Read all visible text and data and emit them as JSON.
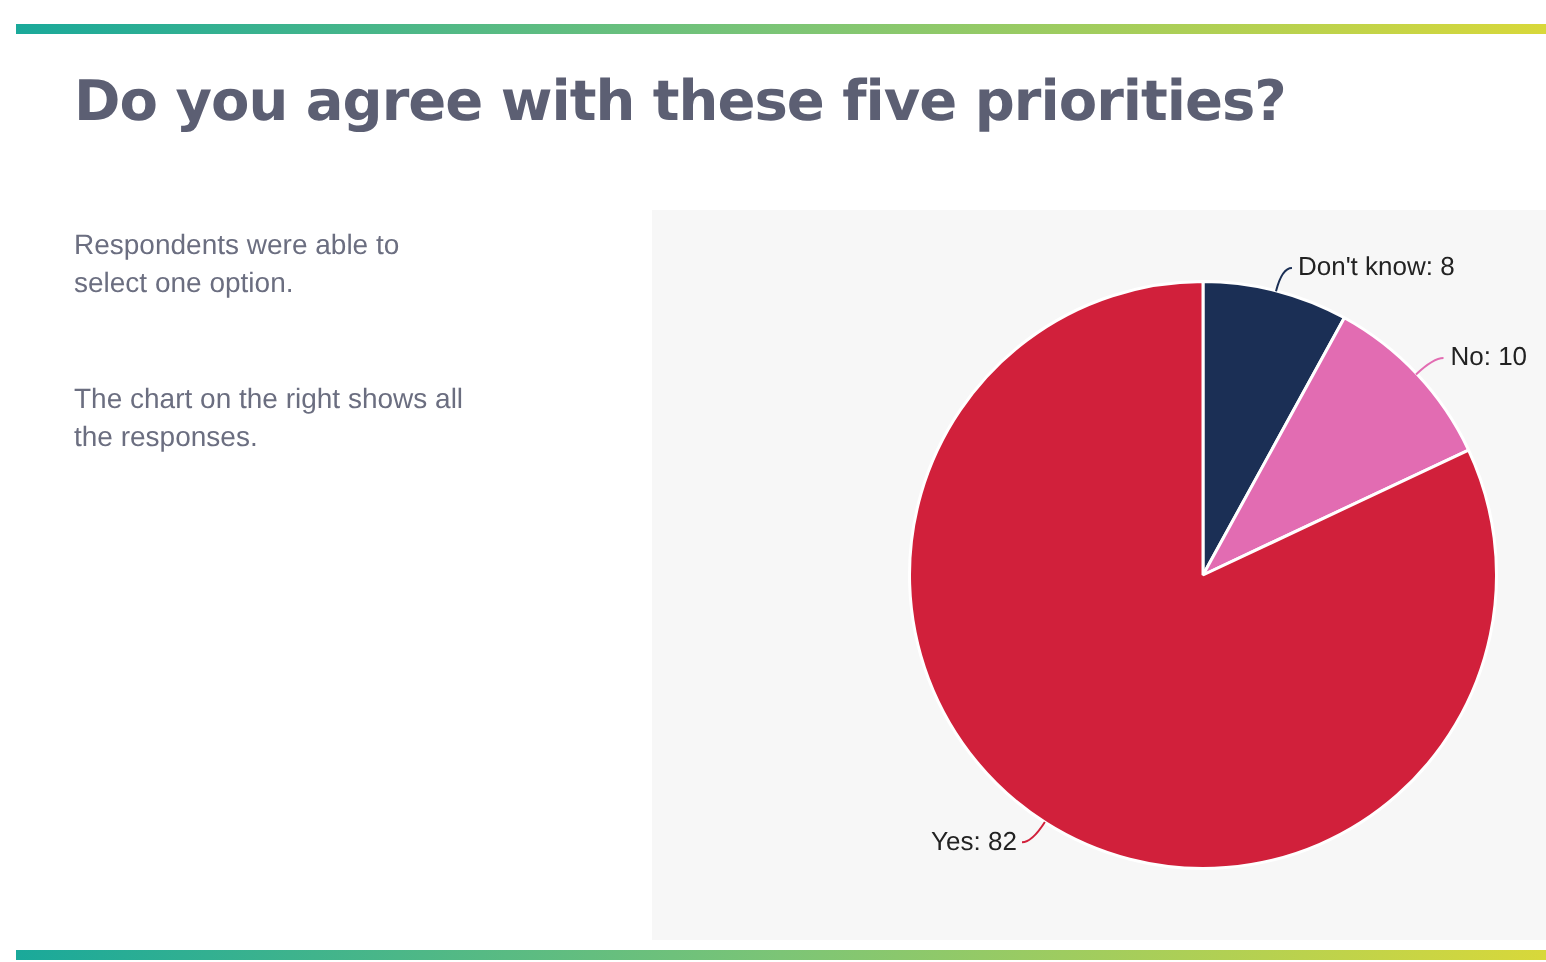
{
  "chart_data": {
    "type": "pie",
    "title": "Do you agree with these five priorities?",
    "annotations": [
      "Respondents were able to select one option.",
      "The chart on the right shows all the responses."
    ],
    "categories": [
      "Don't know",
      "No",
      "Yes"
    ],
    "values": [
      8,
      10,
      82
    ],
    "colors": [
      "#1b2f55",
      "#e26cb2",
      "#d1203b"
    ],
    "value_labels": [
      ": 8",
      ": 10",
      ": 82"
    ],
    "legend": false
  }
}
